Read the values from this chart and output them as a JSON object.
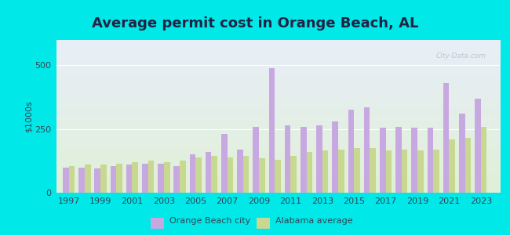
{
  "title": "Average permit cost in Orange Beach, AL",
  "ylabel": "$1000s",
  "background_outer": "#00e8e8",
  "background_inner_colors": [
    "#e8eef8",
    "#e0f0d8"
  ],
  "city_data": {
    "1997": 100,
    "1998": 100,
    "1999": 95,
    "2000": 105,
    "2001": 110,
    "2002": 115,
    "2003": 115,
    "2004": 105,
    "2005": 150,
    "2006": 160,
    "2007": 230,
    "2008": 170,
    "2009": 260,
    "2010": 490,
    "2011": 265,
    "2012": 260,
    "2013": 265,
    "2014": 280,
    "2015": 325,
    "2016": 335,
    "2017": 255,
    "2018": 260,
    "2019": 255,
    "2020": 255,
    "2021": 430,
    "2022": 310,
    "2023": 370
  },
  "alabama_data": {
    "1997": 105,
    "1998": 110,
    "1999": 110,
    "2000": 115,
    "2001": 120,
    "2002": 125,
    "2003": 120,
    "2004": 125,
    "2005": 140,
    "2006": 145,
    "2007": 140,
    "2008": 145,
    "2009": 135,
    "2010": 130,
    "2011": 145,
    "2012": 160,
    "2013": 165,
    "2014": 170,
    "2015": 175,
    "2016": 175,
    "2017": 165,
    "2018": 170,
    "2019": 165,
    "2020": 170,
    "2021": 210,
    "2022": 215,
    "2023": 260
  },
  "city_color": "#c8a8e0",
  "alabama_color": "#c8d890",
  "ylim": [
    0,
    600
  ],
  "yticks": [
    0,
    250,
    500
  ],
  "title_fontsize": 13,
  "tick_fontsize": 8,
  "ylabel_fontsize": 8,
  "legend_city": "Orange Beach city",
  "legend_alabama": "Alabama average",
  "title_color": "#222244",
  "tick_color": "#334455",
  "grid_color": "#ffffff"
}
